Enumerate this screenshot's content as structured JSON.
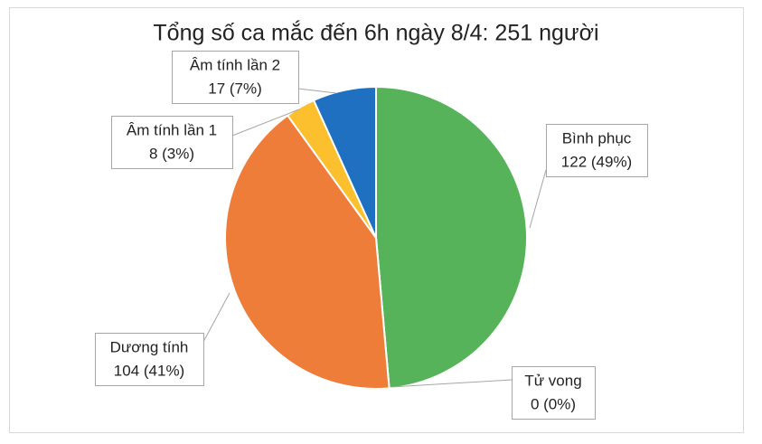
{
  "chart_data": {
    "type": "pie",
    "title": "Tổng số ca mắc đến 6h ngày 8/4: 251 người",
    "categories": [
      "Bình phục",
      "Tử vong",
      "Dương tính",
      "Âm tính lần 1",
      "Âm tính lần 2"
    ],
    "values": [
      122,
      0,
      104,
      8,
      17
    ],
    "value_labels": [
      "122 (49%)",
      "0 (0%)",
      "104 (41%)",
      "8 (3%)",
      "17 (7%)"
    ],
    "colors": [
      "#56b35a",
      "#a5a5a5",
      "#ee7d3a",
      "#fcc02e",
      "#1f70c1"
    ]
  }
}
